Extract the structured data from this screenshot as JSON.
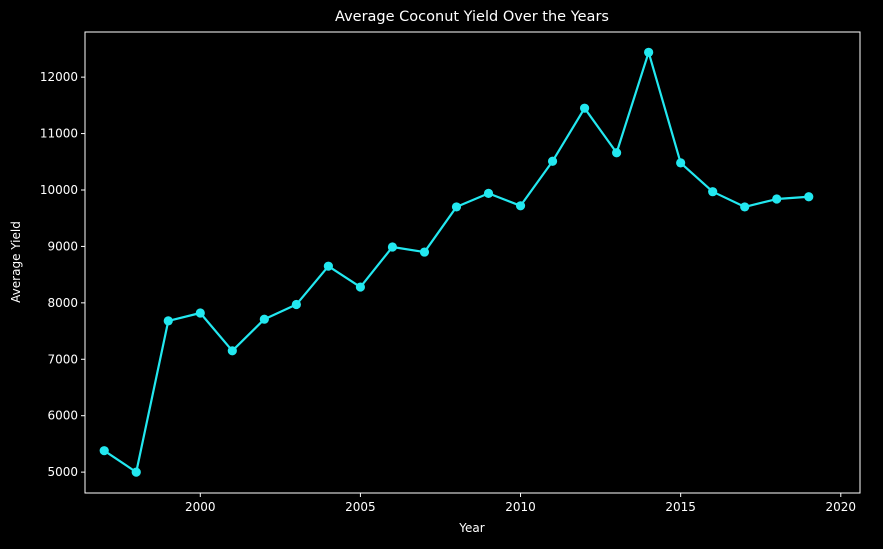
{
  "chart_data": {
    "type": "line",
    "title": "Average Coconut Yield Over the Years",
    "xlabel": "Year",
    "ylabel": "Average Yield",
    "xlim": [
      1996.4,
      2020.6
    ],
    "ylim": [
      4630,
      12800
    ],
    "x_ticks": [
      2000,
      2005,
      2010,
      2015,
      2020
    ],
    "y_ticks": [
      5000,
      6000,
      7000,
      8000,
      9000,
      10000,
      11000,
      12000
    ],
    "grid": false,
    "legend": "none",
    "series": [
      {
        "color": "#22e8f0",
        "marker": "circle",
        "x": [
          1997,
          1998,
          1999,
          2000,
          2001,
          2002,
          2003,
          2004,
          2005,
          2006,
          2007,
          2008,
          2009,
          2010,
          2011,
          2012,
          2013,
          2014,
          2015,
          2016,
          2017,
          2018,
          2019
        ],
        "values": [
          5380,
          5000,
          7680,
          7820,
          7150,
          7710,
          7970,
          8650,
          8280,
          8990,
          8900,
          9700,
          9940,
          9720,
          10510,
          11450,
          10660,
          12440,
          10480,
          9970,
          9700,
          9840,
          9880
        ]
      }
    ]
  },
  "colors": {
    "background": "#000000",
    "axes": "#ffffff",
    "text": "#ffffff",
    "series": "#22e8f0"
  }
}
